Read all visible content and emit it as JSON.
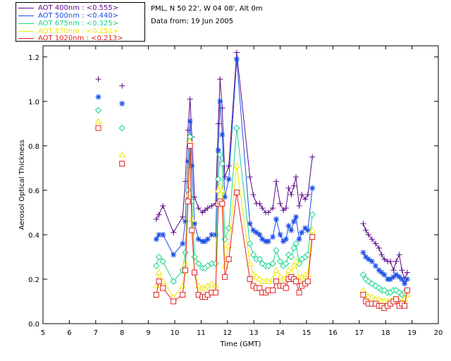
{
  "info": {
    "station": "PML, N 50 22', W 04 08', Alt 0m",
    "date": "Data from: 19 Jun 2005"
  },
  "chart_data": {
    "type": "scatter",
    "title": "",
    "xlabel": "Time (GMT)",
    "ylabel": "Aerosol Optical Thickness",
    "xlim": [
      5,
      20
    ],
    "ylim": [
      0.0,
      1.25
    ],
    "xticks": [
      5,
      6,
      7,
      8,
      9,
      10,
      11,
      12,
      13,
      14,
      15,
      16,
      17,
      18,
      19,
      20
    ],
    "yticks": [
      0.0,
      0.2,
      0.4,
      0.6,
      0.8,
      1.0,
      1.2
    ],
    "legend_position": "top-left-outside",
    "series": [
      {
        "name": "AOT  400nm : <0.555>",
        "color": "#5a0a87",
        "marker": "plus",
        "points": [
          [
            7.1,
            1.1
          ],
          [
            8.0,
            1.07
          ],
          [
            9.3,
            0.47
          ],
          [
            9.4,
            0.49
          ],
          [
            9.55,
            0.53
          ],
          [
            9.95,
            0.41
          ],
          [
            10.3,
            0.48
          ],
          [
            10.4,
            0.64
          ],
          [
            10.5,
            0.87
          ],
          [
            10.58,
            1.01
          ],
          [
            10.65,
            0.84
          ],
          [
            10.75,
            0.57
          ],
          [
            10.9,
            0.52
          ],
          [
            11.05,
            0.5
          ],
          [
            11.15,
            0.51
          ],
          [
            11.25,
            0.52
          ],
          [
            11.4,
            0.53
          ],
          [
            11.55,
            0.54
          ],
          [
            11.65,
            0.9
          ],
          [
            11.72,
            1.1
          ],
          [
            11.8,
            0.97
          ],
          [
            11.9,
            0.66
          ],
          [
            12.05,
            0.71
          ],
          [
            12.35,
            1.22
          ],
          [
            12.85,
            0.66
          ],
          [
            12.98,
            0.58
          ],
          [
            13.1,
            0.54
          ],
          [
            13.22,
            0.54
          ],
          [
            13.32,
            0.52
          ],
          [
            13.45,
            0.5
          ],
          [
            13.55,
            0.5
          ],
          [
            13.72,
            0.52
          ],
          [
            13.85,
            0.64
          ],
          [
            14.0,
            0.54
          ],
          [
            14.12,
            0.51
          ],
          [
            14.22,
            0.52
          ],
          [
            14.32,
            0.61
          ],
          [
            14.42,
            0.58
          ],
          [
            14.52,
            0.62
          ],
          [
            14.6,
            0.66
          ],
          [
            14.72,
            0.53
          ],
          [
            14.82,
            0.58
          ],
          [
            14.95,
            0.56
          ],
          [
            15.05,
            0.58
          ],
          [
            15.22,
            0.75
          ],
          [
            17.15,
            0.45
          ],
          [
            17.25,
            0.42
          ],
          [
            17.35,
            0.4
          ],
          [
            17.48,
            0.38
          ],
          [
            17.62,
            0.36
          ],
          [
            17.75,
            0.34
          ],
          [
            17.85,
            0.31
          ],
          [
            17.95,
            0.29
          ],
          [
            18.08,
            0.28
          ],
          [
            18.18,
            0.28
          ],
          [
            18.3,
            0.24
          ],
          [
            18.4,
            0.28
          ],
          [
            18.52,
            0.31
          ],
          [
            18.62,
            0.24
          ],
          [
            18.72,
            0.2
          ],
          [
            18.82,
            0.23
          ]
        ]
      },
      {
        "name": "AOT  500nm : <0.440>",
        "color": "#1a4ee6",
        "marker": "star",
        "points": [
          [
            7.1,
            1.02
          ],
          [
            8.0,
            0.99
          ],
          [
            9.3,
            0.38
          ],
          [
            9.4,
            0.4
          ],
          [
            9.55,
            0.4
          ],
          [
            9.95,
            0.31
          ],
          [
            10.3,
            0.36
          ],
          [
            10.4,
            0.46
          ],
          [
            10.5,
            0.73
          ],
          [
            10.58,
            0.91
          ],
          [
            10.65,
            0.71
          ],
          [
            10.75,
            0.45
          ],
          [
            10.9,
            0.38
          ],
          [
            11.05,
            0.37
          ],
          [
            11.15,
            0.37
          ],
          [
            11.25,
            0.38
          ],
          [
            11.4,
            0.4
          ],
          [
            11.55,
            0.4
          ],
          [
            11.65,
            0.78
          ],
          [
            11.72,
            1.0
          ],
          [
            11.8,
            0.85
          ],
          [
            11.9,
            0.57
          ],
          [
            12.05,
            0.65
          ],
          [
            12.35,
            1.19
          ],
          [
            12.85,
            0.45
          ],
          [
            12.98,
            0.42
          ],
          [
            13.1,
            0.41
          ],
          [
            13.22,
            0.4
          ],
          [
            13.32,
            0.38
          ],
          [
            13.45,
            0.37
          ],
          [
            13.55,
            0.37
          ],
          [
            13.72,
            0.39
          ],
          [
            13.85,
            0.47
          ],
          [
            14.0,
            0.4
          ],
          [
            14.12,
            0.37
          ],
          [
            14.22,
            0.38
          ],
          [
            14.32,
            0.44
          ],
          [
            14.42,
            0.42
          ],
          [
            14.52,
            0.46
          ],
          [
            14.6,
            0.48
          ],
          [
            14.72,
            0.38
          ],
          [
            14.82,
            0.41
          ],
          [
            14.95,
            0.43
          ],
          [
            15.05,
            0.42
          ],
          [
            15.22,
            0.61
          ],
          [
            17.15,
            0.32
          ],
          [
            17.25,
            0.3
          ],
          [
            17.35,
            0.29
          ],
          [
            17.48,
            0.28
          ],
          [
            17.62,
            0.26
          ],
          [
            17.75,
            0.24
          ],
          [
            17.85,
            0.23
          ],
          [
            17.95,
            0.22
          ],
          [
            18.08,
            0.2
          ],
          [
            18.18,
            0.2
          ],
          [
            18.3,
            0.21
          ],
          [
            18.4,
            0.22
          ],
          [
            18.52,
            0.21
          ],
          [
            18.62,
            0.2
          ],
          [
            18.72,
            0.18
          ],
          [
            18.82,
            0.2
          ]
        ]
      },
      {
        "name": "AOT  675nm : <0.325>",
        "color": "#19d48a",
        "marker": "diamond",
        "points": [
          [
            7.1,
            0.96
          ],
          [
            8.0,
            0.88
          ],
          [
            9.3,
            0.26
          ],
          [
            9.4,
            0.3
          ],
          [
            9.55,
            0.28
          ],
          [
            9.95,
            0.19
          ],
          [
            10.3,
            0.24
          ],
          [
            10.4,
            0.32
          ],
          [
            10.5,
            0.6
          ],
          [
            10.58,
            0.84
          ],
          [
            10.65,
            0.55
          ],
          [
            10.75,
            0.3
          ],
          [
            10.9,
            0.27
          ],
          [
            11.05,
            0.25
          ],
          [
            11.15,
            0.25
          ],
          [
            11.25,
            0.26
          ],
          [
            11.4,
            0.27
          ],
          [
            11.55,
            0.27
          ],
          [
            11.65,
            0.65
          ],
          [
            11.72,
            0.76
          ],
          [
            11.8,
            0.72
          ],
          [
            11.9,
            0.38
          ],
          [
            12.05,
            0.43
          ],
          [
            12.35,
            0.88
          ],
          [
            12.85,
            0.36
          ],
          [
            12.98,
            0.31
          ],
          [
            13.1,
            0.29
          ],
          [
            13.22,
            0.29
          ],
          [
            13.32,
            0.27
          ],
          [
            13.45,
            0.26
          ],
          [
            13.55,
            0.26
          ],
          [
            13.72,
            0.27
          ],
          [
            13.85,
            0.33
          ],
          [
            14.0,
            0.28
          ],
          [
            14.12,
            0.26
          ],
          [
            14.22,
            0.27
          ],
          [
            14.32,
            0.31
          ],
          [
            14.42,
            0.3
          ],
          [
            14.52,
            0.34
          ],
          [
            14.6,
            0.36
          ],
          [
            14.72,
            0.27
          ],
          [
            14.82,
            0.29
          ],
          [
            14.95,
            0.3
          ],
          [
            15.05,
            0.31
          ],
          [
            15.22,
            0.49
          ],
          [
            17.15,
            0.22
          ],
          [
            17.25,
            0.2
          ],
          [
            17.35,
            0.19
          ],
          [
            17.48,
            0.18
          ],
          [
            17.62,
            0.17
          ],
          [
            17.75,
            0.16
          ],
          [
            17.85,
            0.15
          ],
          [
            17.95,
            0.15
          ],
          [
            18.08,
            0.14
          ],
          [
            18.18,
            0.14
          ],
          [
            18.3,
            0.15
          ],
          [
            18.4,
            0.15
          ],
          [
            18.52,
            0.14
          ],
          [
            18.62,
            0.13
          ],
          [
            18.72,
            0.14
          ],
          [
            18.82,
            0.15
          ]
        ]
      },
      {
        "name": "AOT  870nm : <0.251>",
        "color": "#f0ea00",
        "marker": "triangle",
        "points": [
          [
            7.1,
            0.91
          ],
          [
            8.0,
            0.76
          ],
          [
            9.3,
            0.17
          ],
          [
            9.4,
            0.23
          ],
          [
            9.55,
            0.19
          ],
          [
            9.95,
            0.12
          ],
          [
            10.3,
            0.17
          ],
          [
            10.4,
            0.27
          ],
          [
            10.5,
            0.58
          ],
          [
            10.58,
            0.82
          ],
          [
            10.65,
            0.47
          ],
          [
            10.75,
            0.23
          ],
          [
            10.9,
            0.17
          ],
          [
            11.05,
            0.16
          ],
          [
            11.15,
            0.16
          ],
          [
            11.25,
            0.17
          ],
          [
            11.4,
            0.18
          ],
          [
            11.55,
            0.17
          ],
          [
            11.65,
            0.6
          ],
          [
            11.72,
            0.62
          ],
          [
            11.8,
            0.6
          ],
          [
            11.9,
            0.26
          ],
          [
            12.05,
            0.35
          ],
          [
            12.35,
            0.71
          ],
          [
            12.85,
            0.27
          ],
          [
            12.98,
            0.22
          ],
          [
            13.1,
            0.21
          ],
          [
            13.22,
            0.2
          ],
          [
            13.32,
            0.19
          ],
          [
            13.45,
            0.19
          ],
          [
            13.55,
            0.19
          ],
          [
            13.72,
            0.2
          ],
          [
            13.85,
            0.24
          ],
          [
            14.0,
            0.21
          ],
          [
            14.12,
            0.2
          ],
          [
            14.22,
            0.21
          ],
          [
            14.32,
            0.24
          ],
          [
            14.42,
            0.23
          ],
          [
            14.52,
            0.26
          ],
          [
            14.6,
            0.28
          ],
          [
            14.72,
            0.19
          ],
          [
            14.82,
            0.21
          ],
          [
            14.95,
            0.22
          ],
          [
            15.05,
            0.22
          ],
          [
            15.22,
            0.42
          ],
          [
            17.15,
            0.15
          ],
          [
            17.25,
            0.13
          ],
          [
            17.35,
            0.12
          ],
          [
            17.48,
            0.12
          ],
          [
            17.62,
            0.11
          ],
          [
            17.75,
            0.11
          ],
          [
            17.85,
            0.1
          ],
          [
            17.95,
            0.1
          ],
          [
            18.08,
            0.1
          ],
          [
            18.18,
            0.1
          ],
          [
            18.3,
            0.11
          ],
          [
            18.4,
            0.11
          ],
          [
            18.52,
            0.1
          ],
          [
            18.62,
            0.1
          ],
          [
            18.72,
            0.11
          ],
          [
            18.82,
            0.13
          ]
        ]
      },
      {
        "name": "AOT 1020nm : <0.213>",
        "color": "#e02020",
        "marker": "square",
        "points": [
          [
            7.1,
            0.88
          ],
          [
            8.0,
            0.72
          ],
          [
            9.3,
            0.13
          ],
          [
            9.4,
            0.19
          ],
          [
            9.55,
            0.16
          ],
          [
            9.95,
            0.1
          ],
          [
            10.3,
            0.13
          ],
          [
            10.4,
            0.24
          ],
          [
            10.5,
            0.55
          ],
          [
            10.58,
            0.8
          ],
          [
            10.65,
            0.42
          ],
          [
            10.75,
            0.23
          ],
          [
            10.9,
            0.13
          ],
          [
            11.05,
            0.12
          ],
          [
            11.15,
            0.12
          ],
          [
            11.25,
            0.13
          ],
          [
            11.4,
            0.14
          ],
          [
            11.55,
            0.14
          ],
          [
            11.65,
            0.54
          ],
          [
            11.72,
            0.55
          ],
          [
            11.8,
            0.54
          ],
          [
            11.9,
            0.21
          ],
          [
            12.05,
            0.29
          ],
          [
            12.35,
            0.59
          ],
          [
            12.85,
            0.2
          ],
          [
            12.98,
            0.17
          ],
          [
            13.1,
            0.16
          ],
          [
            13.22,
            0.16
          ],
          [
            13.32,
            0.14
          ],
          [
            13.45,
            0.14
          ],
          [
            13.55,
            0.15
          ],
          [
            13.72,
            0.15
          ],
          [
            13.85,
            0.19
          ],
          [
            14.0,
            0.17
          ],
          [
            14.12,
            0.17
          ],
          [
            14.22,
            0.16
          ],
          [
            14.32,
            0.2
          ],
          [
            14.42,
            0.21
          ],
          [
            14.52,
            0.2
          ],
          [
            14.6,
            0.19
          ],
          [
            14.72,
            0.14
          ],
          [
            14.82,
            0.17
          ],
          [
            14.95,
            0.18
          ],
          [
            15.05,
            0.19
          ],
          [
            15.22,
            0.39
          ],
          [
            17.15,
            0.13
          ],
          [
            17.25,
            0.1
          ],
          [
            17.35,
            0.09
          ],
          [
            17.48,
            0.09
          ],
          [
            17.62,
            0.09
          ],
          [
            17.75,
            0.08
          ],
          [
            17.85,
            0.08
          ],
          [
            17.95,
            0.07
          ],
          [
            18.08,
            0.08
          ],
          [
            18.18,
            0.09
          ],
          [
            18.3,
            0.1
          ],
          [
            18.4,
            0.11
          ],
          [
            18.52,
            0.08
          ],
          [
            18.62,
            0.09
          ],
          [
            18.72,
            0.08
          ],
          [
            18.82,
            0.15
          ]
        ]
      }
    ]
  }
}
